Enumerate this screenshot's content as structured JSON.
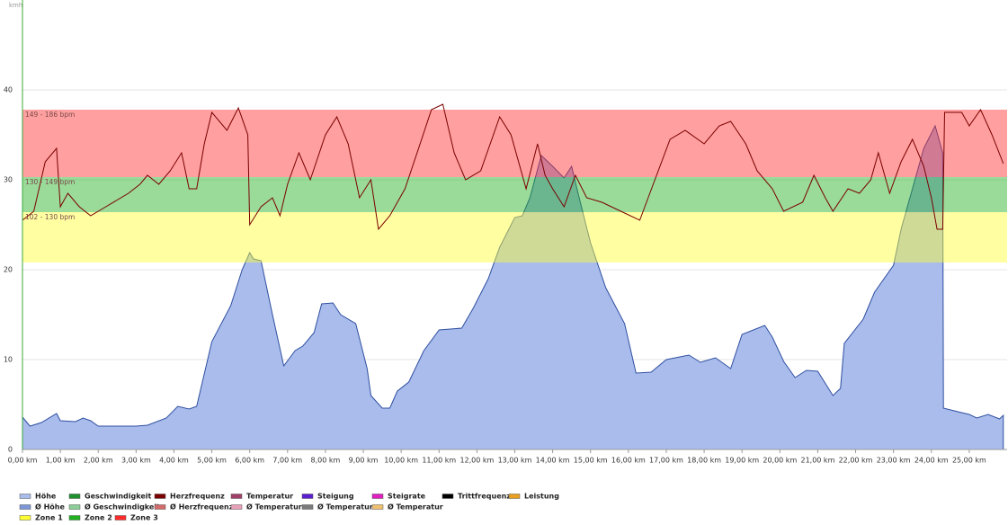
{
  "chart_data": {
    "type": "area-line",
    "y_label": "kmh",
    "xlim": [
      0,
      26
    ],
    "ylim": [
      0,
      50
    ],
    "yticks": [
      0,
      10,
      20,
      30,
      40
    ],
    "xticks": [
      {
        "value": 0,
        "label": "0,00 km"
      },
      {
        "value": 1,
        "label": "1,00 km"
      },
      {
        "value": 2,
        "label": "2,00 km"
      },
      {
        "value": 3,
        "label": "3,00 km"
      },
      {
        "value": 4,
        "label": "4,00 km"
      },
      {
        "value": 5,
        "label": "5,00 km"
      },
      {
        "value": 6,
        "label": "6,00 km"
      },
      {
        "value": 7,
        "label": "7,00 km"
      },
      {
        "value": 8,
        "label": "8,00 km"
      },
      {
        "value": 9,
        "label": "9,00 km"
      },
      {
        "value": 10,
        "label": "10,00 km"
      },
      {
        "value": 11,
        "label": "11,00 km"
      },
      {
        "value": 12,
        "label": "12,00 km"
      },
      {
        "value": 13,
        "label": "13,00 km"
      },
      {
        "value": 14,
        "label": "14,00 km"
      },
      {
        "value": 15,
        "label": "15,00 km"
      },
      {
        "value": 16,
        "label": "16,00 km"
      },
      {
        "value": 17,
        "label": "17,00 km"
      },
      {
        "value": 18,
        "label": "18,00 km"
      },
      {
        "value": 19,
        "label": "19,00 km"
      },
      {
        "value": 20,
        "label": "20,00 km"
      },
      {
        "value": 21,
        "label": "21,00 km"
      },
      {
        "value": 22,
        "label": "22,00 km"
      },
      {
        "value": 23,
        "label": "23,00 km"
      },
      {
        "value": 24,
        "label": "24,00 km"
      },
      {
        "value": 25,
        "label": "25,00 km"
      }
    ],
    "grid": true,
    "zones": [
      {
        "name": "Zone 1",
        "label": "102 - 130 bpm",
        "range": [
          20.8,
          26.4
        ],
        "color": "#ffff30"
      },
      {
        "name": "Zone 2",
        "label": "130 - 149 bpm",
        "range": [
          26.4,
          30.3
        ],
        "color": "#20b020"
      },
      {
        "name": "Zone 3",
        "label": "149 - 186 bpm",
        "range": [
          30.3,
          37.8
        ],
        "color": "#ff2a2a"
      }
    ],
    "series": [
      {
        "name": "Höhe",
        "color": "#a9bcec",
        "stroke": "#2f4fa0",
        "kind": "area",
        "x": [
          0,
          0.2,
          0.5,
          0.9,
          1.0,
          1.4,
          1.6,
          1.8,
          2.0,
          3.0,
          3.3,
          3.8,
          4.1,
          4.4,
          4.6,
          5.0,
          5.5,
          5.8,
          6.0,
          6.1,
          6.3,
          6.6,
          6.9,
          7.2,
          7.4,
          7.7,
          7.9,
          8.2,
          8.4,
          8.8,
          9.1,
          9.2,
          9.5,
          9.7,
          9.9,
          10.2,
          10.6,
          11.0,
          11.6,
          11.9,
          12.3,
          12.6,
          13.0,
          13.2,
          13.4,
          13.7,
          14.0,
          14.3,
          14.5,
          14.7,
          15.0,
          15.4,
          15.9,
          16.2,
          16.6,
          17.0,
          17.6,
          17.9,
          18.3,
          18.7,
          19.0,
          19.6,
          19.8,
          20.1,
          20.4,
          20.7,
          21.0,
          21.4,
          21.6,
          21.7,
          22.2,
          22.5,
          23.0,
          23.2,
          23.5,
          23.8,
          24.1,
          24.3,
          24.32,
          24.7,
          25.0,
          25.2,
          25.5,
          25.8,
          25.9
        ],
        "values": [
          3.6,
          2.6,
          3.0,
          4.0,
          3.2,
          3.1,
          3.5,
          3.2,
          2.6,
          2.6,
          2.7,
          3.5,
          4.8,
          4.5,
          4.8,
          12,
          16,
          20,
          21.9,
          21.2,
          21,
          15,
          9.3,
          11,
          11.5,
          13,
          16.2,
          16.3,
          15,
          14,
          9,
          6,
          4.6,
          4.6,
          6.5,
          7.5,
          11,
          13.3,
          13.5,
          15.7,
          19,
          22.5,
          25.8,
          26,
          28,
          32.7,
          31.5,
          30.2,
          31.5,
          28,
          23,
          18,
          14,
          8.5,
          8.6,
          10,
          10.5,
          9.7,
          10.2,
          9,
          12.8,
          13.8,
          12.5,
          9.8,
          8,
          8.8,
          8.7,
          6,
          6.8,
          11.8,
          14.5,
          17.5,
          20.5,
          24.5,
          29,
          33.5,
          36,
          33,
          4.6,
          4.2,
          3.9,
          3.5,
          3.9,
          3.4,
          3.8
        ]
      },
      {
        "name": "Geschwindigkeit",
        "color": "#1f8f2f"
      },
      {
        "name": "Herzfrequenz",
        "color": "#7a0000",
        "kind": "line",
        "x": [
          0,
          0.3,
          0.6,
          0.9,
          1.0,
          1.2,
          1.5,
          1.8,
          2.2,
          2.8,
          3.1,
          3.3,
          3.6,
          3.9,
          4.2,
          4.4,
          4.6,
          4.8,
          5.0,
          5.4,
          5.7,
          5.95,
          6.0,
          6.3,
          6.6,
          6.8,
          7.0,
          7.3,
          7.6,
          8.0,
          8.3,
          8.6,
          8.9,
          9.2,
          9.4,
          9.7,
          10.1,
          10.5,
          10.8,
          11.1,
          11.4,
          11.7,
          12.1,
          12.6,
          12.9,
          13.3,
          13.6,
          13.8,
          14.0,
          14.3,
          14.6,
          14.9,
          15.3,
          15.8,
          16.3,
          16.7,
          17.1,
          17.5,
          18.0,
          18.4,
          18.7,
          19.1,
          19.4,
          19.8,
          20.1,
          20.6,
          20.9,
          21.2,
          21.4,
          21.8,
          22.1,
          22.4,
          22.6,
          22.9,
          23.2,
          23.5,
          23.8,
          24.0,
          24.15,
          24.3,
          24.35,
          24.8,
          25.0,
          25.3,
          25.6,
          25.9
        ],
        "values": [
          25.5,
          26.5,
          32,
          33.5,
          27,
          28.5,
          27,
          26,
          27,
          28.5,
          29.5,
          30.5,
          29.5,
          31,
          33,
          29,
          29,
          34,
          37.5,
          35.5,
          38,
          35,
          25,
          27,
          28,
          26,
          29.5,
          33,
          30,
          35,
          37,
          34,
          28,
          30,
          24.5,
          26,
          29,
          34,
          37.8,
          38.4,
          33,
          30,
          31,
          37,
          35,
          29,
          34,
          30.5,
          29,
          27,
          30.5,
          28,
          27.5,
          26.5,
          25.5,
          30,
          34.5,
          35.5,
          34,
          36,
          36.5,
          34,
          31,
          29,
          26.5,
          27.5,
          30.5,
          28,
          26.5,
          29,
          28.5,
          30,
          33,
          28.5,
          32,
          34.5,
          31.5,
          28,
          24.5,
          24.5,
          37.5,
          37.5,
          36,
          37.8,
          35,
          31.8
        ]
      },
      {
        "name": "Temperatur",
        "color": "#a0406a"
      },
      {
        "name": "Steigung",
        "color": "#5a1ed0"
      },
      {
        "name": "Steigrate",
        "color": "#e020c0"
      },
      {
        "name": "Trittfrequenz",
        "color": "#000000"
      },
      {
        "name": "Leistung",
        "color": "#e8a020"
      },
      {
        "name": "Ø Höhe",
        "color": "#7d96d8"
      },
      {
        "name": "Ø Geschwindigkeit",
        "color": "#8ccf96"
      },
      {
        "name": "Ø Herzfrequenz",
        "color": "#d46a6a"
      },
      {
        "name": "Ø Temperatur",
        "color": "#e8a0b8"
      },
      {
        "name": "Ø Temperatur",
        "color": "#7a7a7a"
      },
      {
        "name": "Ø Temperatur",
        "color": "#f0c070"
      }
    ]
  }
}
